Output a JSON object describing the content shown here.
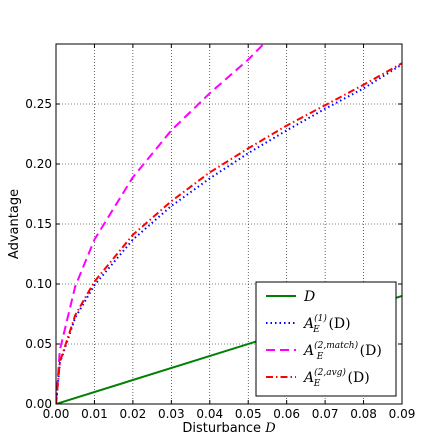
{
  "chart_data": {
    "type": "line",
    "title": "",
    "xlabel_text": "Disturbance ",
    "xlabel_var": "D",
    "ylabel": "Advantage",
    "xlim": [
      0,
      0.09
    ],
    "ylim": [
      0,
      0.3
    ],
    "xticks": [
      0.0,
      0.01,
      0.02,
      0.03,
      0.04,
      0.05,
      0.06,
      0.07,
      0.08,
      0.09
    ],
    "xtick_labels": [
      "0.00",
      "0.01",
      "0.02",
      "0.03",
      "0.04",
      "0.05",
      "0.06",
      "0.07",
      "0.08",
      "0.09"
    ],
    "yticks": [
      0.0,
      0.05,
      0.1,
      0.15,
      0.2,
      0.25
    ],
    "ytick_labels": [
      "0.00",
      "0.05",
      "0.10",
      "0.15",
      "0.20",
      "0.25"
    ],
    "grid": true,
    "legend_position": "bottom-right",
    "series": [
      {
        "name": "D",
        "color": "#008000",
        "style": "solid",
        "x": [
          0,
          0.09
        ],
        "y": [
          0,
          0.09
        ]
      },
      {
        "name": "A_E^(1)(D)",
        "color": "#0000ff",
        "style": "dotted",
        "x": [
          0,
          0.001,
          0.005,
          0.01,
          0.02,
          0.03,
          0.04,
          0.05,
          0.06,
          0.07,
          0.08,
          0.09
        ],
        "y": [
          0,
          0.034,
          0.072,
          0.099,
          0.137,
          0.165,
          0.188,
          0.209,
          0.228,
          0.246,
          0.263,
          0.283
        ]
      },
      {
        "name": "A_E^(2,match)(D)",
        "color": "#ff00ff",
        "style": "dashed",
        "x": [
          0,
          0.001,
          0.005,
          0.01,
          0.02,
          0.03,
          0.04,
          0.05,
          0.054
        ],
        "y": [
          0,
          0.045,
          0.098,
          0.137,
          0.189,
          0.228,
          0.259,
          0.287,
          0.3
        ]
      },
      {
        "name": "A_E^(2,avg)(D)",
        "color": "#ff0000",
        "style": "dashdot",
        "x": [
          0,
          0.001,
          0.005,
          0.01,
          0.02,
          0.03,
          0.04,
          0.05,
          0.06,
          0.07,
          0.08,
          0.09
        ],
        "y": [
          0,
          0.035,
          0.074,
          0.102,
          0.141,
          0.169,
          0.193,
          0.213,
          0.232,
          0.249,
          0.266,
          0.284
        ]
      }
    ],
    "legend": [
      {
        "base": "D",
        "sup": "",
        "series_index": 0
      },
      {
        "base": "A",
        "sub": "E",
        "sup": "(1)",
        "arg": "(D)",
        "series_index": 1
      },
      {
        "base": "A",
        "sub": "E",
        "sup": "(2,match)",
        "arg": "(D)",
        "series_index": 2
      },
      {
        "base": "A",
        "sub": "E",
        "sup": "(2,avg)",
        "arg": "(D)",
        "series_index": 3
      }
    ]
  }
}
